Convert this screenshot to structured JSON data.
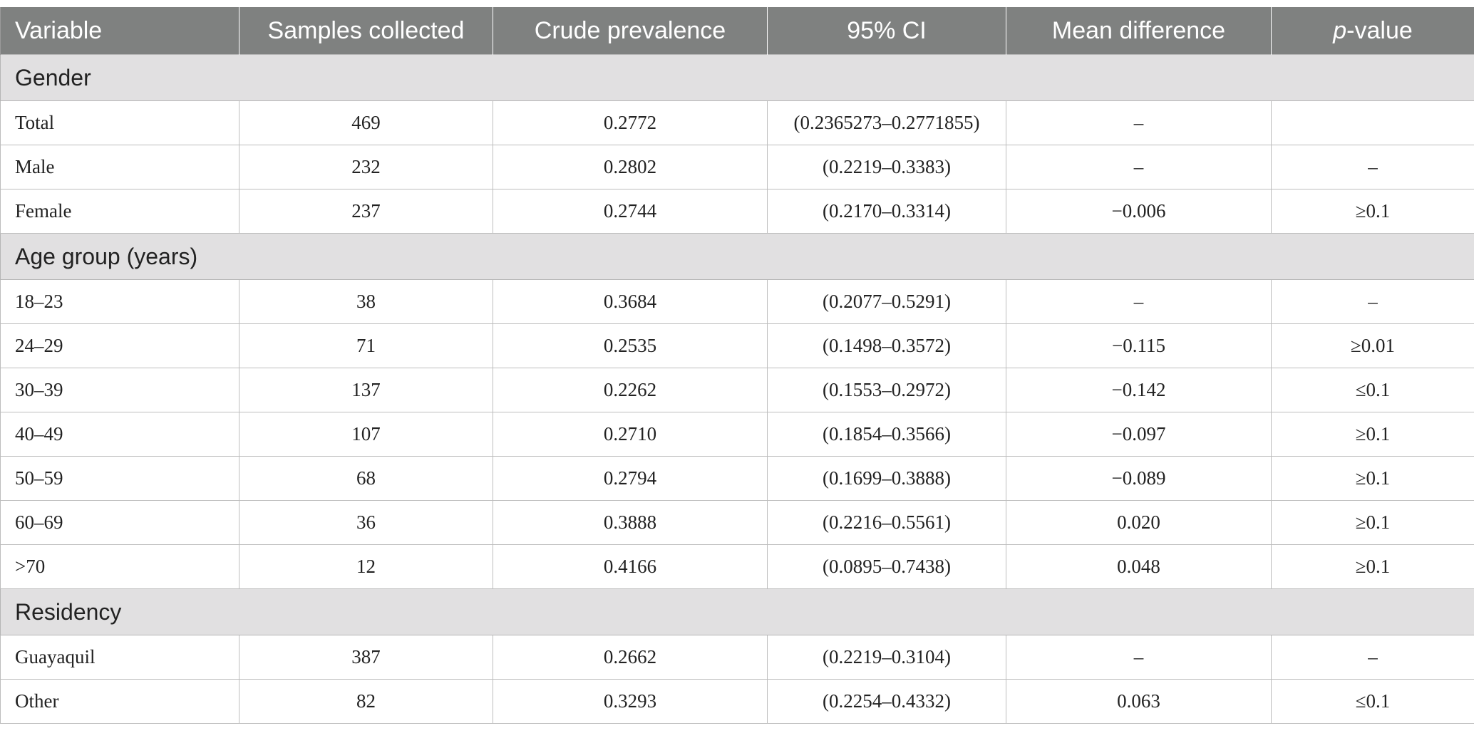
{
  "header": {
    "variable": "Variable",
    "samples": "Samples collected",
    "prevalence": "Crude prevalence",
    "ci": "95% CI",
    "mean_diff": "Mean difference",
    "p_italic": "p",
    "p_rest": "-value"
  },
  "groups": {
    "gender": {
      "title": "Gender",
      "rows": [
        {
          "label": "Total",
          "samples": "469",
          "prevalence": "0.2772",
          "ci": "(0.2365273–0.2771855)",
          "mean_diff": "–",
          "p": ""
        },
        {
          "label": "Male",
          "samples": "232",
          "prevalence": "0.2802",
          "ci": "(0.2219–0.3383)",
          "mean_diff": "–",
          "p": "–"
        },
        {
          "label": "Female",
          "samples": "237",
          "prevalence": "0.2744",
          "ci": "(0.2170–0.3314)",
          "mean_diff": "−0.006",
          "p": "≥0.1"
        }
      ]
    },
    "age": {
      "title": "Age group (years)",
      "rows": [
        {
          "label": "18–23",
          "samples": "38",
          "prevalence": "0.3684",
          "ci": "(0.2077–0.5291)",
          "mean_diff": "–",
          "p": "–"
        },
        {
          "label": "24–29",
          "samples": "71",
          "prevalence": "0.2535",
          "ci": "(0.1498–0.3572)",
          "mean_diff": "−0.115",
          "p": "≥0.01"
        },
        {
          "label": "30–39",
          "samples": "137",
          "prevalence": "0.2262",
          "ci": "(0.1553–0.2972)",
          "mean_diff": "−0.142",
          "p": "≤0.1"
        },
        {
          "label": "40–49",
          "samples": "107",
          "prevalence": "0.2710",
          "ci": "(0.1854–0.3566)",
          "mean_diff": "−0.097",
          "p": "≥0.1"
        },
        {
          "label": "50–59",
          "samples": "68",
          "prevalence": "0.2794",
          "ci": "(0.1699–0.3888)",
          "mean_diff": "−0.089",
          "p": "≥0.1"
        },
        {
          "label": "60–69",
          "samples": "36",
          "prevalence": "0.3888",
          "ci": "(0.2216–0.5561)",
          "mean_diff": "0.020",
          "p": "≥0.1"
        },
        {
          "label": ">70",
          "samples": "12",
          "prevalence": "0.4166",
          "ci": "(0.0895–0.7438)",
          "mean_diff": "0.048",
          "p": "≥0.1"
        }
      ]
    },
    "residency": {
      "title": "Residency",
      "rows": [
        {
          "label": "Guayaquil",
          "samples": "387",
          "prevalence": "0.2662",
          "ci": "(0.2219–0.3104)",
          "mean_diff": "–",
          "p": "–"
        },
        {
          "label": "Other",
          "samples": "82",
          "prevalence": "0.3293",
          "ci": "(0.2254–0.4332)",
          "mean_diff": "0.063",
          "p": "≤0.1"
        }
      ]
    }
  }
}
